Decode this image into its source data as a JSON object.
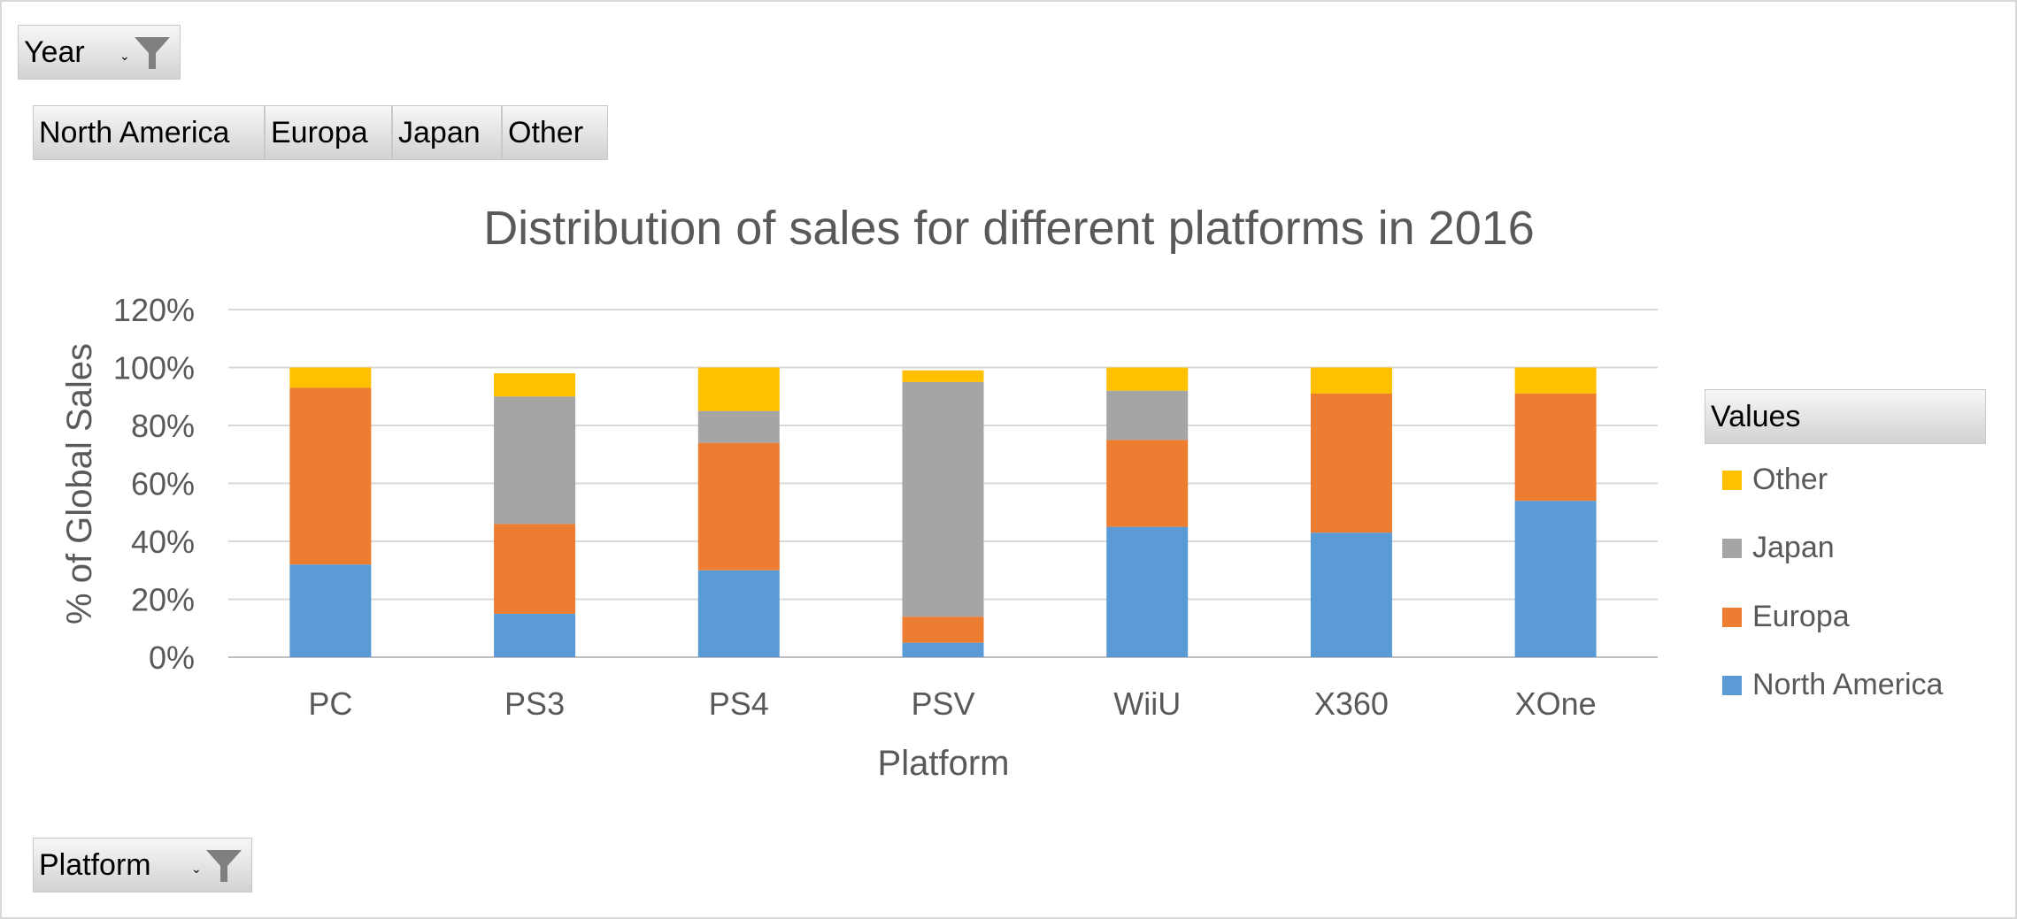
{
  "filters": {
    "year": {
      "label": "Year",
      "icon": "funnel-icon"
    },
    "platform": {
      "label": "Platform",
      "icon": "funnel-icon"
    },
    "series_buttons": [
      "North America",
      "Europa",
      "Japan",
      "Other"
    ]
  },
  "legend": {
    "header": "Values",
    "items": [
      {
        "name": "Other",
        "color": "#FFC000"
      },
      {
        "name": "Japan",
        "color": "#A5A5A5"
      },
      {
        "name": "Europa",
        "color": "#ED7D31"
      },
      {
        "name": "North America",
        "color": "#5B9BD5"
      }
    ]
  },
  "chart_data": {
    "type": "bar",
    "stacked": true,
    "title": "Distribution of sales for different platforms in 2016",
    "xlabel": "Platform",
    "ylabel": "% of Global Sales",
    "categories": [
      "PC",
      "PS3",
      "PS4",
      "PSV",
      "WiiU",
      "X360",
      "XOne"
    ],
    "ylim": [
      0,
      120
    ],
    "yticks": [
      "0%",
      "20%",
      "40%",
      "60%",
      "80%",
      "100%",
      "120%"
    ],
    "series": [
      {
        "name": "North America",
        "color": "#5B9BD5",
        "values": [
          32,
          15,
          30,
          5,
          45,
          43,
          54
        ]
      },
      {
        "name": "Europa",
        "color": "#ED7D31",
        "values": [
          61,
          31,
          44,
          9,
          30,
          48,
          37
        ]
      },
      {
        "name": "Japan",
        "color": "#A5A5A5",
        "values": [
          0,
          44,
          11,
          81,
          17,
          0,
          0
        ]
      },
      {
        "name": "Other",
        "color": "#FFC000",
        "values": [
          7,
          8,
          15,
          4,
          8,
          9,
          9
        ]
      }
    ],
    "grid": true,
    "legend_position": "right"
  }
}
